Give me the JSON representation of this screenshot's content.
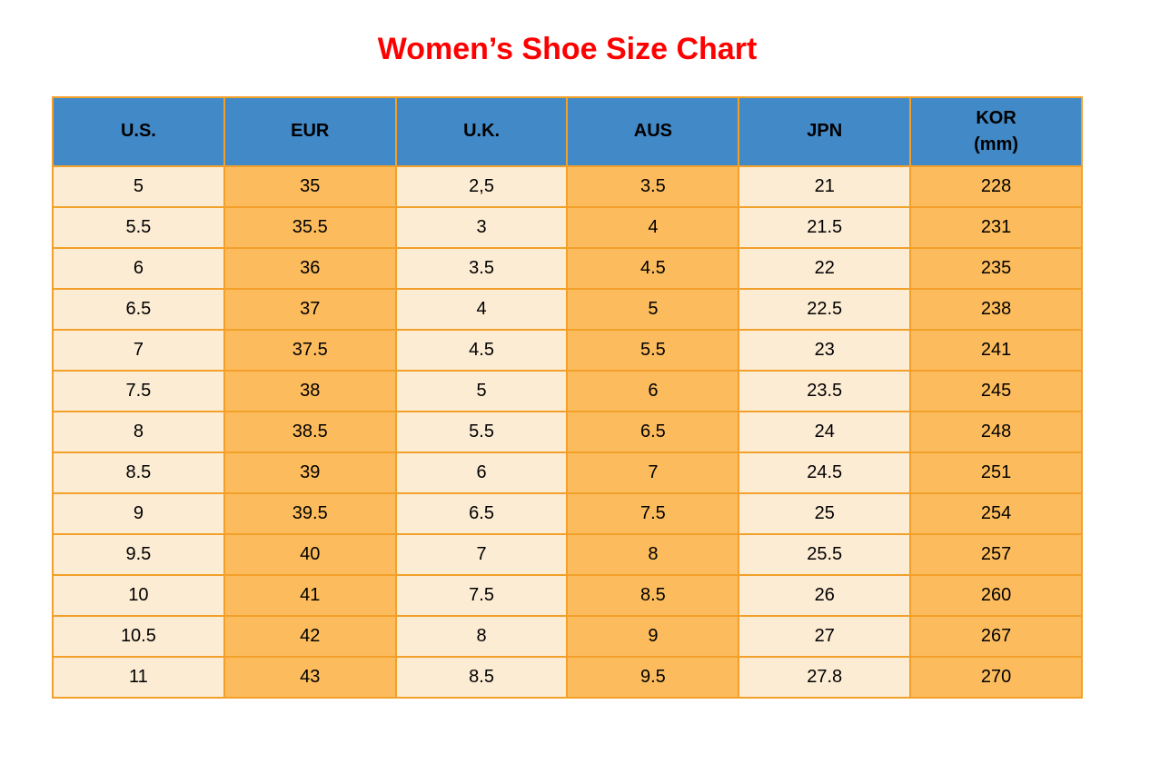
{
  "title": "Women’s Shoe Size Chart",
  "colors": {
    "title_red": "#FF0000",
    "header_bg": "#4289C7",
    "column_light": "#FDECD4",
    "column_orange": "#FCBC5D",
    "grid_border": "#F2A02A",
    "text": "#000000"
  },
  "table": {
    "headers": [
      {
        "line1": "U.S.",
        "line2": ""
      },
      {
        "line1": "EUR",
        "line2": ""
      },
      {
        "line1": "U.K.",
        "line2": ""
      },
      {
        "line1": "AUS",
        "line2": ""
      },
      {
        "line1": "JPN",
        "line2": ""
      },
      {
        "line1": "KOR",
        "line2": "(mm)"
      }
    ],
    "rows": [
      [
        "5",
        "35",
        "2,5",
        "3.5",
        "21",
        "228"
      ],
      [
        "5.5",
        "35.5",
        "3",
        "4",
        "21.5",
        "231"
      ],
      [
        "6",
        "36",
        "3.5",
        "4.5",
        "22",
        "235"
      ],
      [
        "6.5",
        "37",
        "4",
        "5",
        "22.5",
        "238"
      ],
      [
        "7",
        "37.5",
        "4.5",
        "5.5",
        "23",
        "241"
      ],
      [
        "7.5",
        "38",
        "5",
        "6",
        "23.5",
        "245"
      ],
      [
        "8",
        "38.5",
        "5.5",
        "6.5",
        "24",
        "248"
      ],
      [
        "8.5",
        "39",
        "6",
        "7",
        "24.5",
        "251"
      ],
      [
        "9",
        "39.5",
        "6.5",
        "7.5",
        "25",
        "254"
      ],
      [
        "9.5",
        "40",
        "7",
        "8",
        "25.5",
        "257"
      ],
      [
        "10",
        "41",
        "7.5",
        "8.5",
        "26",
        "260"
      ],
      [
        "10.5",
        "42",
        "8",
        "9",
        "27",
        "267"
      ],
      [
        "11",
        "43",
        "8.5",
        "9.5",
        "27.8",
        "270"
      ]
    ]
  },
  "chart_data": {
    "type": "table",
    "title": "Women’s Shoe Size Chart",
    "columns": [
      "U.S.",
      "EUR",
      "U.K.",
      "AUS",
      "JPN",
      "KOR (mm)"
    ],
    "rows": [
      [
        "5",
        "35",
        "2,5",
        "3.5",
        "21",
        "228"
      ],
      [
        "5.5",
        "35.5",
        "3",
        "4",
        "21.5",
        "231"
      ],
      [
        "6",
        "36",
        "3.5",
        "4.5",
        "22",
        "235"
      ],
      [
        "6.5",
        "37",
        "4",
        "5",
        "22.5",
        "238"
      ],
      [
        "7",
        "37.5",
        "4.5",
        "5.5",
        "23",
        "241"
      ],
      [
        "7.5",
        "38",
        "5",
        "6",
        "23.5",
        "245"
      ],
      [
        "8",
        "38.5",
        "5.5",
        "6.5",
        "24",
        "248"
      ],
      [
        "8.5",
        "39",
        "6",
        "7",
        "24.5",
        "251"
      ],
      [
        "9",
        "39.5",
        "6.5",
        "7.5",
        "25",
        "254"
      ],
      [
        "9.5",
        "40",
        "7",
        "8",
        "25.5",
        "257"
      ],
      [
        "10",
        "41",
        "7.5",
        "8.5",
        "26",
        "260"
      ],
      [
        "10.5",
        "42",
        "8",
        "9",
        "27",
        "267"
      ],
      [
        "11",
        "43",
        "8.5",
        "9.5",
        "27.8",
        "270"
      ]
    ]
  }
}
